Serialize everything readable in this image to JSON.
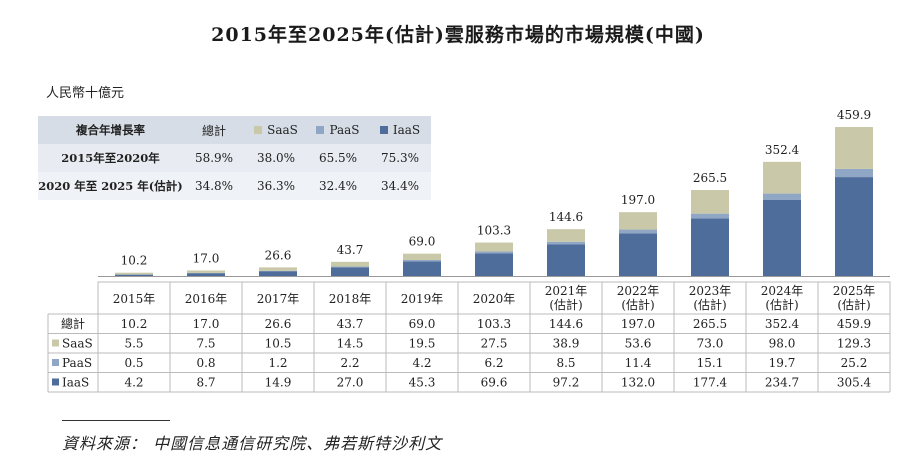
{
  "title": "2015年至2025年(估計)雲服務市場的市場規模(中國)",
  "unit_label": "人民幣十億元",
  "cagr_table": {
    "headers": [
      "複合年增長率",
      "總計",
      "SaaS",
      "PaaS",
      "IaaS"
    ],
    "rows": [
      {
        "label": "2015年至2020年",
        "values": [
          "58.9%",
          "38.0%",
          "65.5%",
          "75.3%"
        ]
      },
      {
        "label": "2020 年至 2025 年(估計)",
        "values": [
          "34.8%",
          "36.3%",
          "32.4%",
          "34.4%"
        ]
      }
    ]
  },
  "colors": {
    "SaaS": "#c9c8a8",
    "PaaS": "#8fa6c4",
    "IaaS": "#4f6d9a"
  },
  "chart_data": {
    "type": "bar",
    "stacked": true,
    "categories": [
      "2015年",
      "2016年",
      "2017年",
      "2018年",
      "2019年",
      "2020年",
      "2021年\n(估計)",
      "2022年\n(估計)",
      "2023年\n(估計)",
      "2024年\n(估計)",
      "2025年\n(估計)"
    ],
    "series": [
      {
        "name": "IaaS",
        "values": [
          4.2,
          8.7,
          14.9,
          27.0,
          45.3,
          69.6,
          97.2,
          132.0,
          177.4,
          234.7,
          305.4
        ]
      },
      {
        "name": "PaaS",
        "values": [
          0.5,
          0.8,
          1.2,
          2.2,
          4.2,
          6.2,
          8.5,
          11.4,
          15.1,
          19.7,
          25.2
        ]
      },
      {
        "name": "SaaS",
        "values": [
          5.5,
          7.5,
          10.5,
          14.5,
          19.5,
          27.5,
          38.9,
          53.6,
          73.0,
          98.0,
          129.3
        ]
      }
    ],
    "totals": [
      10.2,
      17.0,
      26.6,
      43.7,
      69.0,
      103.3,
      144.6,
      197.0,
      265.5,
      352.4,
      459.9
    ],
    "total_labels": [
      "10.2",
      "17.0",
      "26.6",
      "43.7",
      "69.0",
      "103.3",
      "144.6",
      "197.0",
      "265.5",
      "352.4",
      "459.9"
    ],
    "table_rows": [
      {
        "label": "總計",
        "values": [
          "10.2",
          "17.0",
          "26.6",
          "43.7",
          "69.0",
          "103.3",
          "144.6",
          "197.0",
          "265.5",
          "352.4",
          "459.9"
        ]
      },
      {
        "label": "SaaS",
        "values": [
          "5.5",
          "7.5",
          "10.5",
          "14.5",
          "19.5",
          "27.5",
          "38.9",
          "53.6",
          "73.0",
          "98.0",
          "129.3"
        ]
      },
      {
        "label": "PaaS",
        "values": [
          "0.5",
          "0.8",
          "1.2",
          "2.2",
          "4.2",
          "6.2",
          "8.5",
          "11.4",
          "15.1",
          "19.7",
          "25.2"
        ]
      },
      {
        "label": "IaaS",
        "values": [
          "4.2",
          "8.7",
          "14.9",
          "27.0",
          "45.3",
          "69.6",
          "97.2",
          "132.0",
          "177.4",
          "234.7",
          "305.4"
        ]
      }
    ],
    "ylim": [
      0,
      460
    ]
  },
  "source": "資料來源： 中國信息通信研究院、弗若斯特沙利文"
}
